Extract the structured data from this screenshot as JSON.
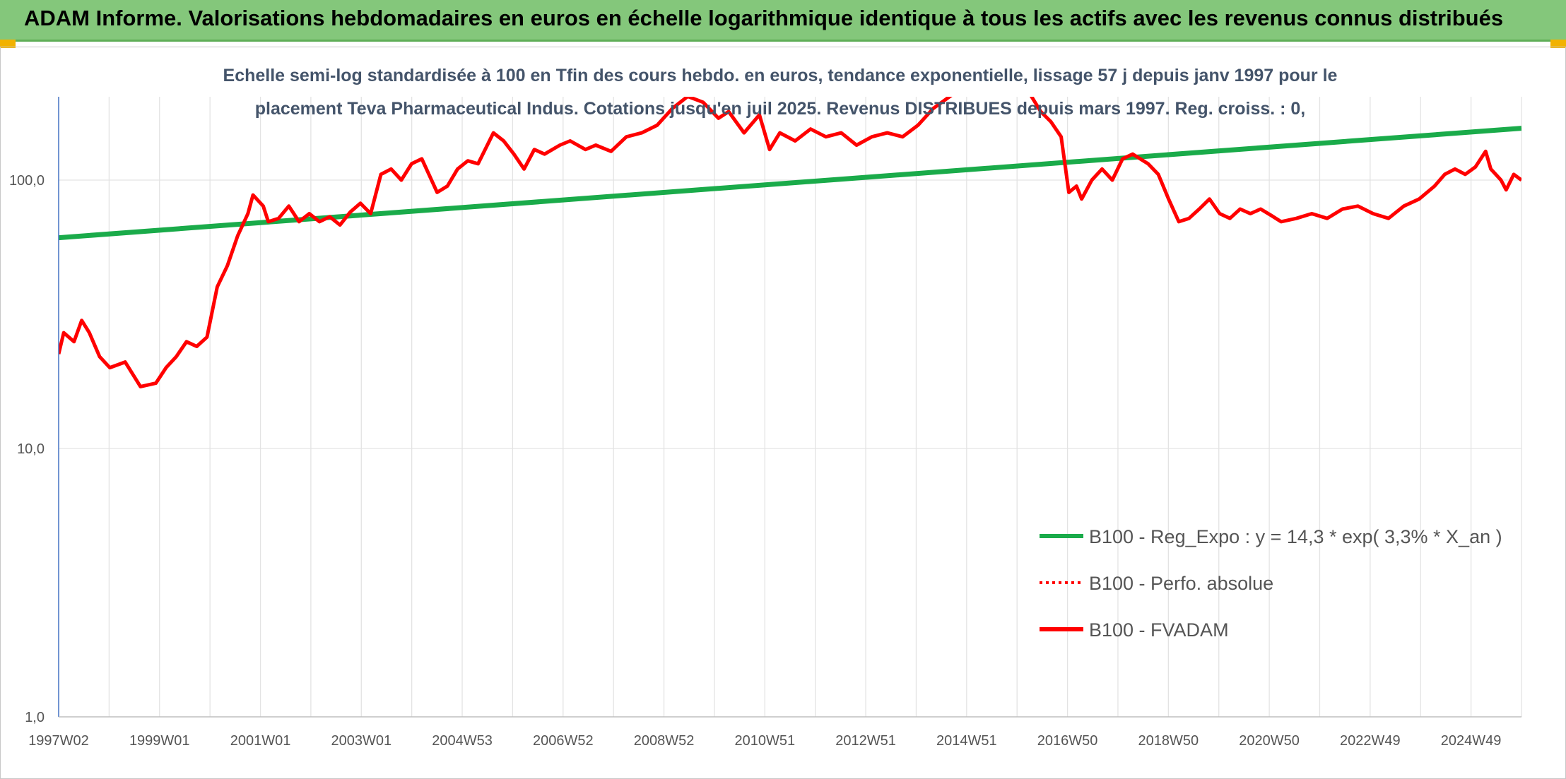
{
  "header": {
    "title": "ADAM Informe. Valorisations hebdomadaires en euros en échelle logarithmique identique à tous les actifs avec les revenus connus distribués"
  },
  "chart_data": {
    "type": "line",
    "title_lines": [
      "Echelle semi-log standardisée à 100 en Tfin des cours hebdo. en euros, tendance exponentielle, lissage 57 j depuis janv 1997 pour le",
      "placement Teva Pharmaceutical Indus. Cotations jusqu'en juil 2025. Revenus DISTRIBUES depuis mars 1997. Reg. croiss. : 0,"
    ],
    "y_scale": "log",
    "ylim": [
      1,
      200
    ],
    "y_ticks": [
      "1,0",
      "10,0",
      "100,0"
    ],
    "x_tick_labels": [
      "1997W02",
      "1999W01",
      "2001W01",
      "2003W01",
      "2004W53",
      "2006W52",
      "2008W52",
      "2010W51",
      "2012W51",
      "2014W51",
      "2016W50",
      "2018W50",
      "2020W50",
      "2022W49",
      "2024W49"
    ],
    "xlim": [
      1997.0,
      2025.6
    ],
    "grid": "vertical and horizontal",
    "legend_position": "bottom-right",
    "series": [
      {
        "name": "B100 - Reg_Expo : y = 14,3 * exp( 3,3% *  X_an )",
        "color": "#1aab4a",
        "style": "solid",
        "x": [
          1997.0,
          2025.6
        ],
        "y": [
          61,
          156
        ]
      },
      {
        "name": "B100 - Perfo. absolue",
        "color": "#ff0000",
        "style": "dotted",
        "x": [],
        "y": []
      },
      {
        "name": "B100 - FVADAM",
        "color": "#ff0000",
        "style": "solid",
        "x": [
          1997.0,
          1997.1,
          1997.3,
          1997.45,
          1997.6,
          1997.8,
          1998.0,
          1998.3,
          1998.6,
          1998.9,
          1999.1,
          1999.3,
          1999.5,
          1999.7,
          1999.9,
          2000.1,
          2000.3,
          2000.5,
          2000.7,
          2000.8,
          2001.0,
          2001.1,
          2001.3,
          2001.5,
          2001.7,
          2001.9,
          2002.1,
          2002.3,
          2002.5,
          2002.7,
          2002.9,
          2003.1,
          2003.3,
          2003.5,
          2003.7,
          2003.9,
          2004.1,
          2004.4,
          2004.6,
          2004.8,
          2005.0,
          2005.2,
          2005.5,
          2005.7,
          2005.9,
          2006.1,
          2006.3,
          2006.5,
          2006.8,
          2007.0,
          2007.3,
          2007.5,
          2007.8,
          2008.1,
          2008.4,
          2008.7,
          2009.0,
          2009.3,
          2009.6,
          2009.9,
          2010.1,
          2010.4,
          2010.7,
          2010.9,
          2011.1,
          2011.4,
          2011.7,
          2012.0,
          2012.3,
          2012.6,
          2012.9,
          2013.2,
          2013.5,
          2013.8,
          2014.1,
          2014.5,
          2014.9,
          2015.3,
          2015.8,
          2016.2,
          2016.4,
          2016.6,
          2016.75,
          2016.9,
          2017.0,
          2017.2,
          2017.4,
          2017.6,
          2017.8,
          2018.0,
          2018.3,
          2018.5,
          2018.7,
          2018.9,
          2019.1,
          2019.3,
          2019.5,
          2019.7,
          2019.9,
          2020.1,
          2020.3,
          2020.5,
          2020.7,
          2020.9,
          2021.2,
          2021.5,
          2021.8,
          2022.1,
          2022.4,
          2022.7,
          2023.0,
          2023.3,
          2023.6,
          2023.9,
          2024.1,
          2024.3,
          2024.5,
          2024.7,
          2024.9,
          2025.0,
          2025.2,
          2025.3,
          2025.45,
          2025.6
        ],
        "y": [
          22.5,
          27,
          25,
          30,
          27,
          22,
          20,
          21,
          17,
          17.5,
          20,
          22,
          25,
          24,
          26,
          40,
          48,
          62,
          75,
          88,
          80,
          70,
          72,
          80,
          70,
          75,
          70,
          73,
          68,
          76,
          82,
          75,
          105,
          110,
          100,
          115,
          120,
          90,
          95,
          110,
          118,
          115,
          150,
          140,
          125,
          110,
          130,
          125,
          135,
          140,
          130,
          135,
          128,
          145,
          150,
          160,
          185,
          205,
          195,
          170,
          180,
          150,
          175,
          130,
          150,
          140,
          155,
          145,
          150,
          135,
          145,
          150,
          145,
          160,
          185,
          210,
          240,
          260,
          240,
          180,
          165,
          145,
          90,
          95,
          85,
          100,
          110,
          100,
          120,
          125,
          115,
          105,
          85,
          70,
          72,
          78,
          85,
          75,
          72,
          78,
          75,
          78,
          74,
          70,
          72,
          75,
          72,
          78,
          80,
          75,
          72,
          80,
          85,
          95,
          105,
          110,
          105,
          112,
          128,
          110,
          100,
          92,
          105,
          100
        ]
      }
    ]
  }
}
